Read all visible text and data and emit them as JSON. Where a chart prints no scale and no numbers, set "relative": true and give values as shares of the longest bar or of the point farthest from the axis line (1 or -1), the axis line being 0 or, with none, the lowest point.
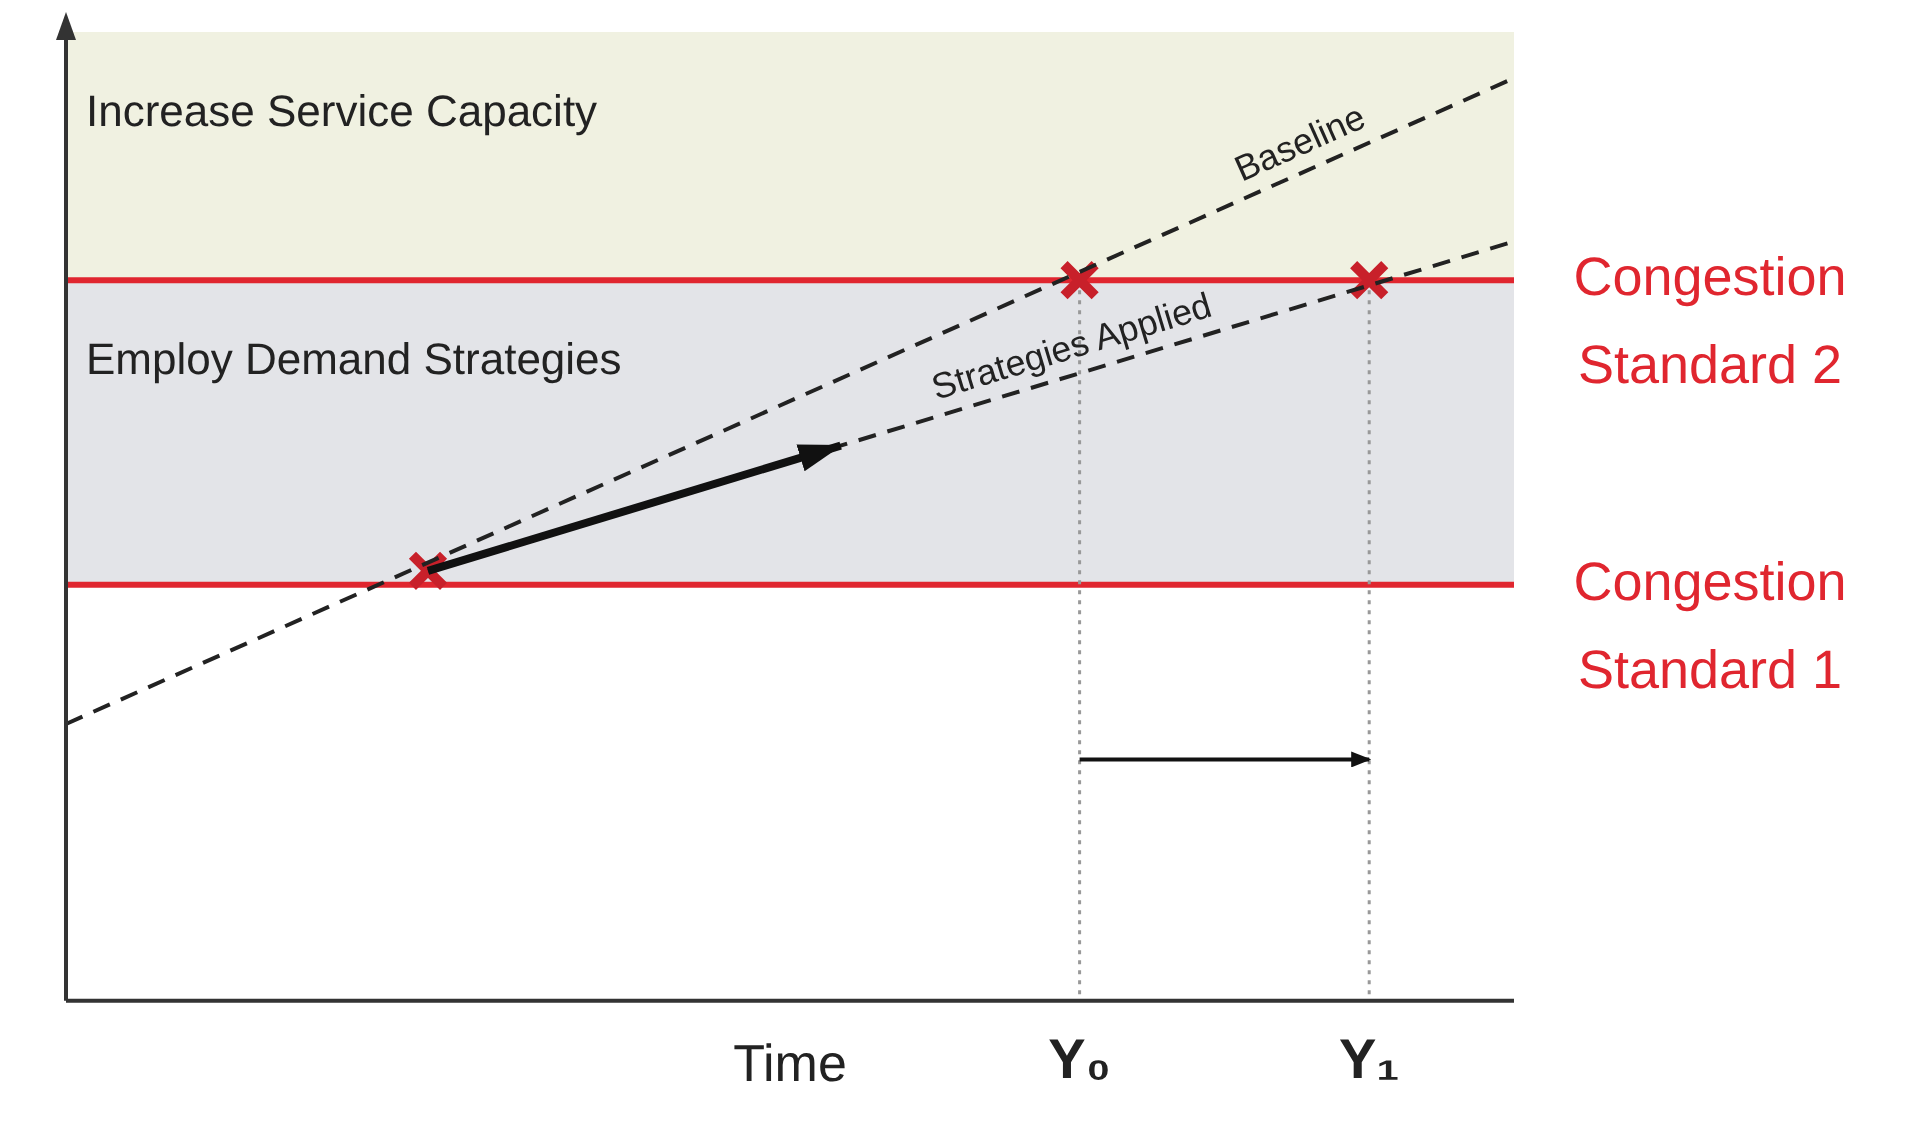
{
  "chart_data": {
    "type": "line",
    "relative": true,
    "xlabel": "Time",
    "categories": [
      null,
      null,
      null,
      null,
      null,
      null,
      null,
      null,
      null,
      null,
      null,
      null,
      null,
      null,
      "Y₀",
      null,
      null,
      null,
      "Y₁",
      null,
      null
    ],
    "tick_labels": "x",
    "grid": false,
    "legend": false,
    "series": [
      {
        "name": "Baseline",
        "color": "#222222",
        "line_style": "dashed",
        "marker": "none",
        "values": [
          0.3,
          null,
          null,
          null,
          null,
          null,
          null,
          null,
          null,
          null,
          null,
          null,
          null,
          null,
          null,
          null,
          null,
          null,
          null,
          null,
          1
        ]
      },
      {
        "name": "Strategies Applied",
        "color": "#222222",
        "line_style": "dashed",
        "marker": "none",
        "values": [
          null,
          null,
          null,
          null,
          null,
          0.466,
          null,
          null,
          null,
          null,
          null,
          null,
          null,
          null,
          null,
          null,
          null,
          null,
          null,
          null,
          0.823
        ]
      },
      {
        "type": "scatter",
        "color": "#c8202a",
        "marker": "cross",
        "values": [
          null,
          null,
          null,
          null,
          null,
          0.466,
          null,
          null,
          null,
          null,
          null,
          null,
          null,
          null,
          0.781,
          null,
          null,
          null,
          0.781,
          null,
          null
        ]
      }
    ],
    "ref_lines": [
      {
        "axis": "y",
        "value": 0.451,
        "label": "Congestion Standard 1",
        "color": "#e0262f",
        "line_style": "solid"
      },
      {
        "axis": "y",
        "value": 0.781,
        "label": "Congestion Standard 2",
        "color": "#e0262f",
        "line_style": "solid"
      },
      {
        "axis": "x",
        "value": "Y₀",
        "color": "#999999",
        "line_style": "dotted"
      },
      {
        "axis": "x",
        "value": "Y₁",
        "color": "#999999",
        "line_style": "dotted"
      }
    ],
    "bands": [
      {
        "axis": "y",
        "from": 0.451,
        "to": 0.781,
        "label": "Employ Demand Strategies",
        "color": "#e3e4e8"
      },
      {
        "axis": "y",
        "from": 0.781,
        "to": 1.05,
        "label": "Increase Service Capacity",
        "color": "#f0f1e1"
      }
    ]
  }
}
